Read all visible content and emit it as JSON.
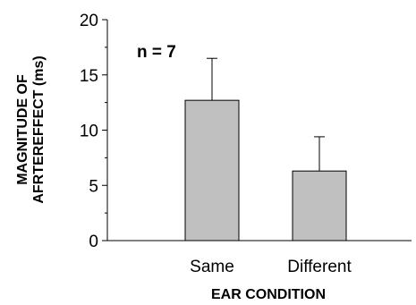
{
  "chart_data": {
    "type": "bar",
    "categories": [
      "Same",
      "Different"
    ],
    "values": [
      12.7,
      6.3
    ],
    "errors": [
      3.8,
      3.1
    ],
    "ylim": [
      0,
      20
    ],
    "yticks": [
      0,
      5,
      10,
      15,
      20
    ],
    "xlabel": "EAR CONDITION",
    "ylabel_line1": "MAGNITUDE OF",
    "ylabel_line2": "AFRTEREFFECT (ms)",
    "annotation": "n = 7",
    "grid": false,
    "bar_color": "#c0c0c0"
  }
}
